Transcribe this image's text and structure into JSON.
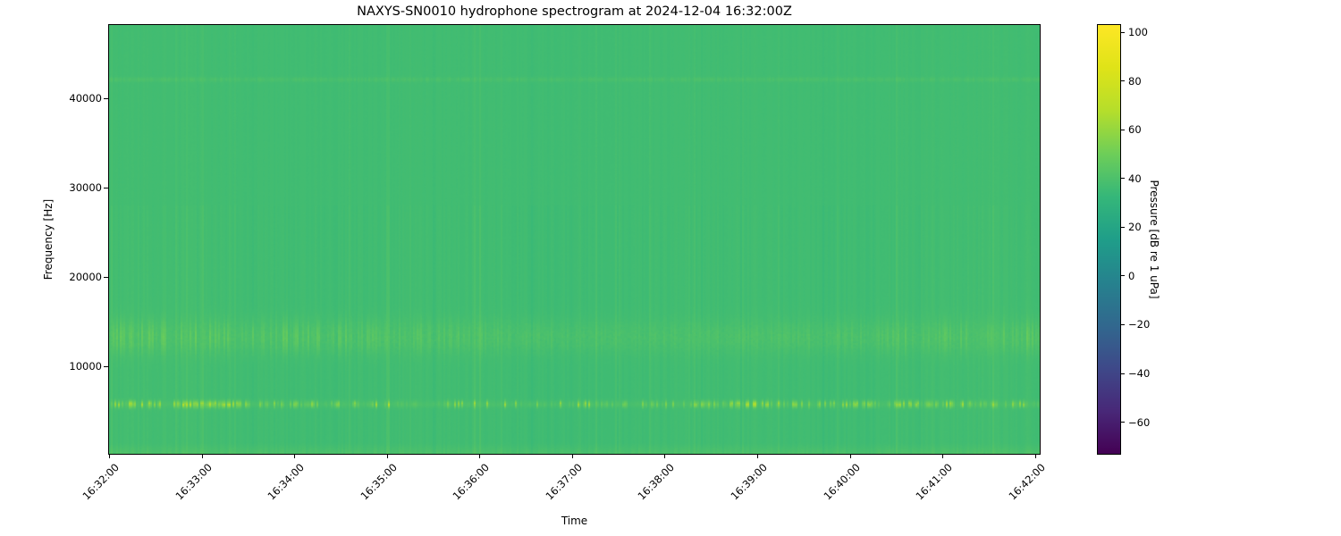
{
  "chart_data": {
    "type": "heatmap",
    "subtype": "spectrogram",
    "title": "NAXYS-SN0010 hydrophone spectrogram at 2024-12-04 16:32:00Z",
    "xlabel": "Time",
    "ylabel": "Frequency [Hz]",
    "colormap": "viridis",
    "grid": false,
    "x_ticks": [
      {
        "label": "16:32:00",
        "seconds": 0
      },
      {
        "label": "16:33:00",
        "seconds": 60
      },
      {
        "label": "16:34:00",
        "seconds": 120
      },
      {
        "label": "16:35:00",
        "seconds": 180
      },
      {
        "label": "16:36:00",
        "seconds": 240
      },
      {
        "label": "16:37:00",
        "seconds": 300
      },
      {
        "label": "16:38:00",
        "seconds": 360
      },
      {
        "label": "16:39:00",
        "seconds": 420
      },
      {
        "label": "16:40:00",
        "seconds": 480
      },
      {
        "label": "16:41:00",
        "seconds": 540
      },
      {
        "label": "16:42:00",
        "seconds": 600
      }
    ],
    "x_range_seconds": [
      0,
      603
    ],
    "x_tick_rotation_deg": 45,
    "y_ticks": [
      {
        "label": "10000",
        "hz": 10000
      },
      {
        "label": "20000",
        "hz": 20000
      },
      {
        "label": "30000",
        "hz": 30000
      },
      {
        "label": "40000",
        "hz": 40000
      }
    ],
    "y_range_hz": [
      200,
      48200
    ],
    "colorbar": {
      "label": "Pressure [dB re 1 uPa]",
      "ticks": [
        {
          "label": "100",
          "value": 100
        },
        {
          "label": "80",
          "value": 80
        },
        {
          "label": "60",
          "value": 60
        },
        {
          "label": "40",
          "value": 40
        },
        {
          "label": "20",
          "value": 20
        },
        {
          "label": "0",
          "value": 0
        },
        {
          "label": "−20",
          "value": -20
        },
        {
          "label": "−40",
          "value": -40
        },
        {
          "label": "−60",
          "value": -60
        }
      ],
      "vmin": -73,
      "vmax": 103,
      "position": "right"
    },
    "content_summary": {
      "background_level_db": 36.5,
      "features": [
        {
          "name": "pulsed-tonal-band",
          "freq_hz": [
            5100,
            6400
          ],
          "level_db": [
            45,
            70
          ],
          "appearance": "bright yellow-green dashed pulses across entire time span"
        },
        {
          "name": "broadband-pulse-texture",
          "freq_hz": [
            10500,
            16500
          ],
          "level_db": [
            38,
            48
          ],
          "appearance": "lighter green vertical speckle band"
        },
        {
          "name": "faint-narrowband-tone",
          "freq_hz": [
            41800,
            42400
          ],
          "level_db": 40,
          "appearance": "very faint lighter horizontal line"
        },
        {
          "name": "low-frequency-edge",
          "freq_hz": [
            200,
            1400
          ],
          "level_db": [
            39,
            46
          ],
          "appearance": "slightly brighter strip along bottom edge"
        },
        {
          "name": "vertical-transient-striping",
          "freq_hz": [
            200,
            48200
          ],
          "level_db_variation": 2.5,
          "appearance": "full-height faint vertical stripes (transients) throughout"
        }
      ]
    }
  },
  "layout_colors": {
    "figure_background": "#ffffff",
    "axes_edge": "#000000",
    "base_field_green": "#3cbc73"
  }
}
